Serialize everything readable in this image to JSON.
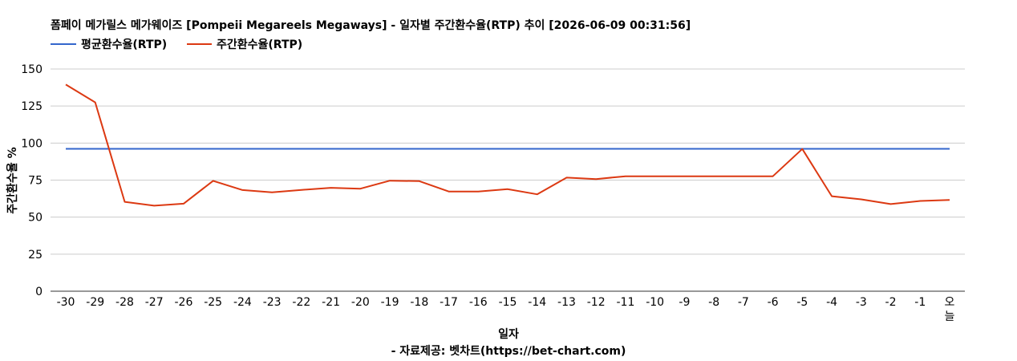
{
  "chart_data": {
    "type": "line",
    "title": "폼페이 메가릴스 메가웨이즈 [Pompeii Megareels Megaways] - 일자별 주간환수율(RTP) 추이 [2026-06-09 00:31:56]",
    "xlabel": "일자",
    "ylabel": "주간환수율 %",
    "footer": "- 자료제공: 벳차트(https://bet-chart.com)",
    "categories": [
      "-30",
      "-29",
      "-28",
      "-27",
      "-26",
      "-25",
      "-24",
      "-23",
      "-22",
      "-21",
      "-20",
      "-19",
      "-18",
      "-17",
      "-16",
      "-15",
      "-14",
      "-13",
      "-12",
      "-11",
      "-10",
      "-9",
      "-8",
      "-7",
      "-6",
      "-5",
      "-4",
      "-3",
      "-2",
      "-1",
      "오늘"
    ],
    "yticks": [
      "0",
      "25",
      "50",
      "75",
      "100",
      "125",
      "150"
    ],
    "ylim": [
      0,
      150
    ],
    "grid": true,
    "legend_position": "top-left",
    "series": [
      {
        "name": "평균환수율(RTP)",
        "color": "#3366cc",
        "values": [
          96.1,
          96.1,
          96.1,
          96.1,
          96.1,
          96.1,
          96.1,
          96.1,
          96.1,
          96.1,
          96.1,
          96.1,
          96.1,
          96.1,
          96.1,
          96.1,
          96.1,
          96.1,
          96.1,
          96.1,
          96.1,
          96.1,
          96.1,
          96.1,
          96.1,
          96.1,
          96.1,
          96.1,
          96.1,
          96.1,
          96.1
        ]
      },
      {
        "name": "주간환수율(RTP)",
        "color": "#dc3912",
        "values": [
          139.5,
          127.5,
          60.3,
          57.7,
          59.1,
          74.5,
          68.3,
          66.7,
          68.4,
          69.8,
          69.2,
          74.6,
          74.3,
          67.3,
          67.3,
          68.9,
          65.4,
          76.7,
          75.7,
          77.6,
          77.6,
          77.6,
          77.6,
          77.6,
          77.6,
          96.0,
          64.1,
          62.0,
          58.8,
          60.9,
          61.6
        ]
      }
    ]
  }
}
